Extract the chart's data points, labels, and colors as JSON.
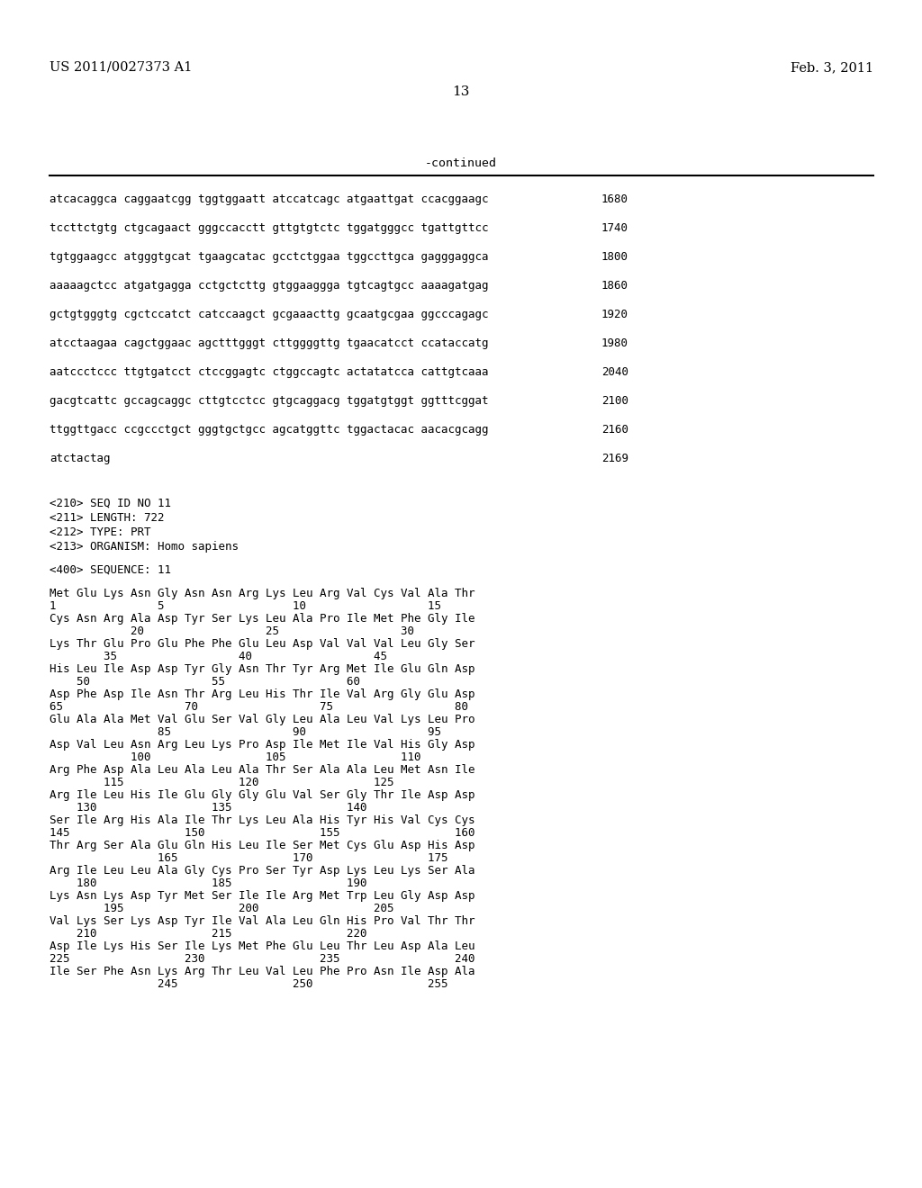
{
  "header_left": "US 2011/0027373 A1",
  "header_right": "Feb. 3, 2011",
  "page_number": "13",
  "continued_label": "-continued",
  "background_color": "#ffffff",
  "text_color": "#000000",
  "dna_lines": [
    [
      "atcacaggca caggaatcgg tggtggaatt atccatcagc atgaattgat ccacggaagc",
      "1680"
    ],
    [
      "tccttctgtg ctgcagaact gggccacctt gttgtgtctc tggatgggcc tgattgttcc",
      "1740"
    ],
    [
      "tgtggaagcc atgggtgcat tgaagcatac gcctctggaa tggccttgca gagggaggca",
      "1800"
    ],
    [
      "aaaaagctcc atgatgagga cctgctcttg gtggaaggga tgtcagtgcc aaaagatgag",
      "1860"
    ],
    [
      "gctgtgggtg cgctccatct catccaagct gcgaaacttg gcaatgcgaa ggcccagagc",
      "1920"
    ],
    [
      "atcctaagaa cagctggaac agctttgggt cttggggttg tgaacatcct ccataccatg",
      "1980"
    ],
    [
      "aatccctccc ttgtgatcct ctccggagtc ctggccagtc actatatcca cattgtcaaa",
      "2040"
    ],
    [
      "gacgtcattc gccagcaggc cttgtcctcc gtgcaggacg tggatgtggt ggtttcggat",
      "2100"
    ],
    [
      "ttggttgacc ccgccctgct gggtgctgcc agcatggttc tggactacac aacacgcagg",
      "2160"
    ],
    [
      "atctactag",
      "2169"
    ]
  ],
  "seq_info": [
    "<210> SEQ ID NO 11",
    "<211> LENGTH: 722",
    "<212> TYPE: PRT",
    "<213> ORGANISM: Homo sapiens"
  ],
  "seq_header": "<400> SEQUENCE: 11",
  "protein_blocks": [
    {
      "seq": "Met Glu Lys Asn Gly Asn Asn Arg Lys Leu Arg Val Cys Val Ala Thr",
      "num": "1               5                   10                  15"
    },
    {
      "seq": "Cys Asn Arg Ala Asp Tyr Ser Lys Leu Ala Pro Ile Met Phe Gly Ile",
      "num": "            20                  25                  30"
    },
    {
      "seq": "Lys Thr Glu Pro Glu Phe Phe Glu Leu Asp Val Val Val Leu Gly Ser",
      "num": "        35                  40                  45"
    },
    {
      "seq": "His Leu Ile Asp Asp Tyr Gly Asn Thr Tyr Arg Met Ile Glu Gln Asp",
      "num": "    50                  55                  60"
    },
    {
      "seq": "Asp Phe Asp Ile Asn Thr Arg Leu His Thr Ile Val Arg Gly Glu Asp",
      "num": "65                  70                  75                  80"
    },
    {
      "seq": "Glu Ala Ala Met Val Glu Ser Val Gly Leu Ala Leu Val Lys Leu Pro",
      "num": "                85                  90                  95"
    },
    {
      "seq": "Asp Val Leu Asn Arg Leu Lys Pro Asp Ile Met Ile Val His Gly Asp",
      "num": "            100                 105                 110"
    },
    {
      "seq": "Arg Phe Asp Ala Leu Ala Leu Ala Thr Ser Ala Ala Leu Met Asn Ile",
      "num": "        115                 120                 125"
    },
    {
      "seq": "Arg Ile Leu His Ile Glu Gly Gly Glu Val Ser Gly Thr Ile Asp Asp",
      "num": "    130                 135                 140"
    },
    {
      "seq": "Ser Ile Arg His Ala Ile Thr Lys Leu Ala His Tyr His Val Cys Cys",
      "num": "145                 150                 155                 160"
    },
    {
      "seq": "Thr Arg Ser Ala Glu Gln His Leu Ile Ser Met Cys Glu Asp His Asp",
      "num": "                165                 170                 175"
    },
    {
      "seq": "Arg Ile Leu Leu Ala Gly Cys Pro Ser Tyr Asp Lys Leu Lys Ser Ala",
      "num": "    180                 185                 190"
    },
    {
      "seq": "Lys Asn Lys Asp Tyr Met Ser Ile Ile Arg Met Trp Leu Gly Asp Asp",
      "num": "        195                 200                 205"
    },
    {
      "seq": "Val Lys Ser Lys Asp Tyr Ile Val Ala Leu Gln His Pro Val Thr Thr",
      "num": "    210                 215                 220"
    },
    {
      "seq": "Asp Ile Lys His Ser Ile Lys Met Phe Glu Leu Thr Leu Asp Ala Leu",
      "num": "225                 230                 235                 240"
    },
    {
      "seq": "Ile Ser Phe Asn Lys Arg Thr Leu Val Leu Phe Pro Asn Ile Asp Ala",
      "num": "                245                 250                 255"
    }
  ]
}
